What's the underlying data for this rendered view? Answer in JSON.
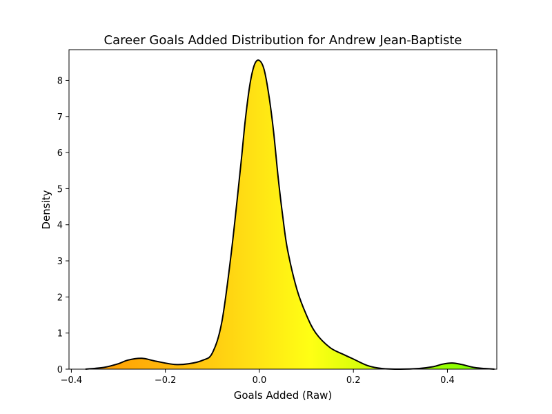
{
  "chart_data": {
    "type": "area",
    "title": "Career Goals Added Distribution for Andrew Jean-Baptiste",
    "xlabel": "Goals Added (Raw)",
    "ylabel": "Density",
    "xlim": [
      -0.405,
      0.505
    ],
    "ylim": [
      0,
      8.85
    ],
    "xticks": [
      -0.4,
      -0.2,
      0.0,
      0.2,
      0.4
    ],
    "xtick_labels": [
      "−0.4",
      "−0.2",
      "0.0",
      "0.2",
      "0.4"
    ],
    "yticks": [
      0,
      1,
      2,
      3,
      4,
      5,
      6,
      7,
      8
    ],
    "ytick_labels": [
      "0",
      "1",
      "2",
      "3",
      "4",
      "5",
      "6",
      "7",
      "8"
    ],
    "grid": false,
    "legend": "none",
    "fill_gradient": "orange-yellow-green by x",
    "colors": {
      "curve": "#000000",
      "fill_low": "#ff9800",
      "fill_mid": "#ffff14",
      "fill_high": "#80ff00"
    },
    "x": [
      -0.37,
      -0.33,
      -0.3,
      -0.28,
      -0.25,
      -0.22,
      -0.18,
      -0.15,
      -0.12,
      -0.1,
      -0.08,
      -0.06,
      -0.04,
      -0.03,
      -0.02,
      -0.01,
      0.0,
      0.01,
      0.02,
      0.03,
      0.04,
      0.05,
      0.06,
      0.08,
      0.1,
      0.12,
      0.15,
      0.18,
      0.2,
      0.23,
      0.26,
      0.3,
      0.34,
      0.37,
      0.39,
      0.41,
      0.43,
      0.46,
      0.5
    ],
    "y": [
      0.0,
      0.05,
      0.15,
      0.25,
      0.3,
      0.22,
      0.13,
      0.15,
      0.25,
      0.45,
      1.3,
      3.2,
      5.6,
      6.9,
      7.9,
      8.45,
      8.55,
      8.3,
      7.6,
      6.6,
      5.3,
      4.2,
      3.3,
      2.2,
      1.5,
      1.0,
      0.6,
      0.4,
      0.28,
      0.1,
      0.02,
      0.0,
      0.02,
      0.07,
      0.14,
      0.17,
      0.13,
      0.04,
      0.0
    ]
  }
}
